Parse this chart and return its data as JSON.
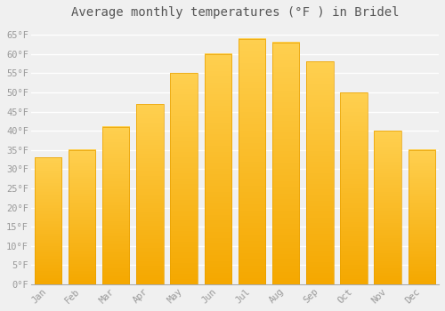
{
  "title": "Average monthly temperatures (°F ) in Bridel",
  "months": [
    "Jan",
    "Feb",
    "Mar",
    "Apr",
    "May",
    "Jun",
    "Jul",
    "Aug",
    "Sep",
    "Oct",
    "Nov",
    "Dec"
  ],
  "values": [
    33,
    35,
    41,
    47,
    55,
    60,
    64,
    63,
    58,
    50,
    40,
    35
  ],
  "bar_color_top": "#FFC82A",
  "bar_color_bottom": "#F5A800",
  "background_color": "#F0F0F0",
  "grid_color": "#FFFFFF",
  "ylim": [
    0,
    68
  ],
  "yticks": [
    0,
    5,
    10,
    15,
    20,
    25,
    30,
    35,
    40,
    45,
    50,
    55,
    60,
    65
  ],
  "title_fontsize": 10,
  "tick_fontsize": 7.5,
  "tick_color": "#999999",
  "title_color": "#555555"
}
